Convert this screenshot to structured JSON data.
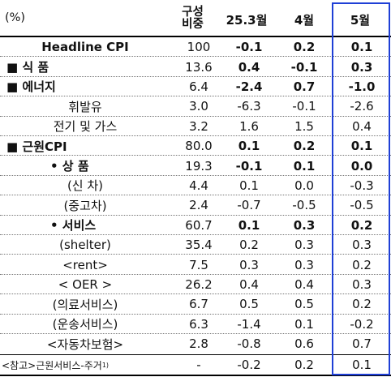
{
  "unit_label": "(%)",
  "columns": {
    "weight_line1": "구성",
    "weight_line2": "비중",
    "col1": "25.3월",
    "col2": "4월",
    "col3": "5월"
  },
  "colors": {
    "highlight_border": "#1f3fd6",
    "text": "#111111"
  },
  "rows": [
    {
      "label": "Headline  CPI",
      "weight": "100",
      "v1": "-0.1",
      "v2": "0.2",
      "v3": "0.1",
      "bold_label": true,
      "bold_values": true,
      "indent": "center"
    },
    {
      "label": "■ 식  품",
      "weight": "13.6",
      "v1": "0.4",
      "v2": "-0.1",
      "v3": "0.3",
      "bold_label": true,
      "bold_values": true,
      "indent": "left"
    },
    {
      "label": "■ 에너지",
      "weight": "6.4",
      "v1": "-2.4",
      "v2": "0.7",
      "v3": "-1.0",
      "bold_label": true,
      "bold_values": true,
      "indent": "left"
    },
    {
      "label": "휘발유",
      "weight": "3.0",
      "v1": "-6.3",
      "v2": "-0.1",
      "v3": "-2.6",
      "bold_label": false,
      "bold_values": false,
      "indent": "center"
    },
    {
      "label": "전기 및 가스",
      "weight": "3.2",
      "v1": "1.6",
      "v2": "1.5",
      "v3": "0.4",
      "bold_label": false,
      "bold_values": false,
      "indent": "center"
    },
    {
      "label": "■ 근원CPI",
      "weight": "80.0",
      "v1": "0.1",
      "v2": "0.2",
      "v3": "0.1",
      "bold_label": true,
      "bold_values": true,
      "indent": "left"
    },
    {
      "label": "• 상    품",
      "weight": "19.3",
      "v1": "-0.1",
      "v2": "0.1",
      "v3": "0.0",
      "bold_label": true,
      "bold_values": true,
      "indent": "sub"
    },
    {
      "label": "(신    차)",
      "weight": "4.4",
      "v1": "0.1",
      "v2": "0.0",
      "v3": "-0.3",
      "bold_label": false,
      "bold_values": false,
      "indent": "center"
    },
    {
      "label": "(중고차)",
      "weight": "2.4",
      "v1": "-0.7",
      "v2": "-0.5",
      "v3": "-0.5",
      "bold_label": false,
      "bold_values": false,
      "indent": "center"
    },
    {
      "label": "• 서비스",
      "weight": "60.7",
      "v1": "0.1",
      "v2": "0.3",
      "v3": "0.2",
      "bold_label": true,
      "bold_values": true,
      "indent": "sub"
    },
    {
      "label": "(shelter)",
      "weight": "35.4",
      "v1": "0.2",
      "v2": "0.3",
      "v3": "0.3",
      "bold_label": false,
      "bold_values": false,
      "indent": "center"
    },
    {
      "label": "<rent>",
      "weight": "7.5",
      "v1": "0.3",
      "v2": "0.3",
      "v3": "0.2",
      "bold_label": false,
      "bold_values": false,
      "indent": "center"
    },
    {
      "label": "< OER >",
      "weight": "26.2",
      "v1": "0.4",
      "v2": "0.4",
      "v3": "0.3",
      "bold_label": false,
      "bold_values": false,
      "indent": "center"
    },
    {
      "label": "(의료서비스)",
      "weight": "6.7",
      "v1": "0.5",
      "v2": "0.5",
      "v3": "0.2",
      "bold_label": false,
      "bold_values": false,
      "indent": "center"
    },
    {
      "label": "(운송서비스)",
      "weight": "6.3",
      "v1": "-1.4",
      "v2": "0.1",
      "v3": "-0.2",
      "bold_label": false,
      "bold_values": false,
      "indent": "center"
    },
    {
      "label": "<자동차보험>",
      "weight": "2.8",
      "v1": "-0.8",
      "v2": "0.6",
      "v3": "0.7",
      "bold_label": false,
      "bold_values": false,
      "indent": "center"
    },
    {
      "label": "<참고>근원서비스-주거",
      "sup": "1)",
      "weight": "-",
      "v1": "-0.2",
      "v2": "0.2",
      "v3": "0.1",
      "bold_label": false,
      "bold_values": false,
      "indent": "note"
    }
  ]
}
